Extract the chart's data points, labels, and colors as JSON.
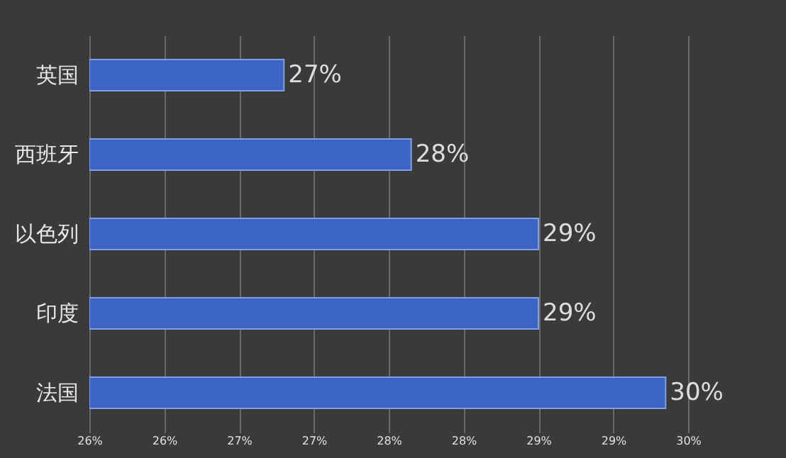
{
  "chart_data": {
    "type": "bar",
    "orientation": "horizontal",
    "categories": [
      "英国",
      "西班牙",
      "以色列",
      "印度",
      "法国"
    ],
    "values": [
      27.3,
      28.15,
      29.0,
      29.0,
      29.85
    ],
    "value_labels": [
      "27%",
      "28%",
      "29%",
      "29%",
      "30%"
    ],
    "color": "#3b64c4",
    "xlim": [
      26,
      30
    ],
    "xticks": [
      {
        "value": 26,
        "label": "26%"
      },
      {
        "value": 26.5,
        "label": "26%"
      },
      {
        "value": 27,
        "label": "27%"
      },
      {
        "value": 27.5,
        "label": "27%"
      },
      {
        "value": 28,
        "label": "28%"
      },
      {
        "value": 28.5,
        "label": "28%"
      },
      {
        "value": 29,
        "label": "29%"
      },
      {
        "value": 29.5,
        "label": "29%"
      },
      {
        "value": 30,
        "label": "30%"
      }
    ],
    "grid": "x"
  }
}
